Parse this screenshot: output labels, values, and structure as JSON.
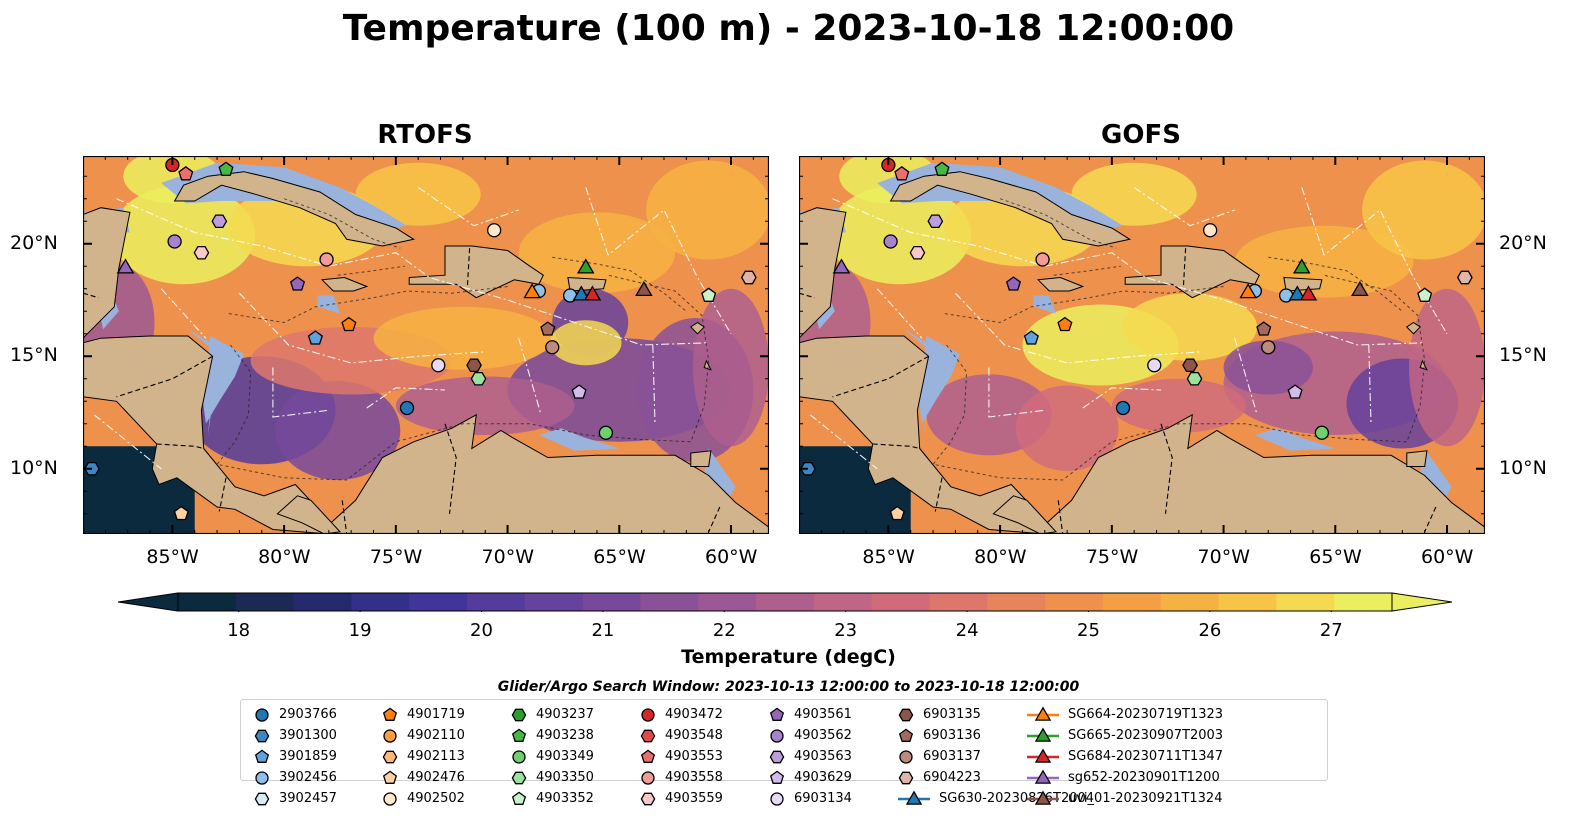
{
  "title": "Temperature (100 m) - 2023-10-18 12:00:00",
  "panels": [
    {
      "title": "RTOFS"
    },
    {
      "title": "GOFS"
    }
  ],
  "axes": {
    "x_ticks": [
      "85°W",
      "80°W",
      "75°W",
      "70°W",
      "65°W",
      "60°W"
    ],
    "y_ticks": [
      "20°N",
      "15°N",
      "10°N"
    ],
    "x_tick_values": [
      -85,
      -80,
      -75,
      -70,
      -65,
      -60
    ],
    "y_tick_values": [
      20,
      15,
      10
    ],
    "lon_range": [
      -89,
      -58.3
    ],
    "lat_range": [
      7.1,
      23.9
    ]
  },
  "colorbar": {
    "label": "Temperature (degC)",
    "ticks": [
      "18",
      "19",
      "20",
      "21",
      "22",
      "23",
      "24",
      "25",
      "26",
      "27"
    ],
    "range": [
      17.5,
      27.5
    ],
    "colors": [
      "#0c2a3e",
      "#1a2a55",
      "#252a6e",
      "#33308a",
      "#42359a",
      "#533c9c",
      "#65429c",
      "#77499b",
      "#8a5198",
      "#9c5894",
      "#ae5f8e",
      "#c06585",
      "#d06c7a",
      "#dd776c",
      "#e6845c",
      "#ee914d",
      "#f3a045",
      "#f6b143",
      "#f7c447",
      "#f4d951",
      "#ebee5e"
    ]
  },
  "search_window": "Glider/Argo Search Window: 2023-10-13 12:00:00 to 2023-10-18 12:00:00",
  "colors": {
    "land": "#d2b48c",
    "shelf": "#99b3dd",
    "deep_ocean": "#0c2a3e"
  },
  "legend": [
    {
      "label": "2903766",
      "marker": "circle",
      "color": "#1f77b4"
    },
    {
      "label": "3901300",
      "marker": "hexagon",
      "color": "#3d86c6"
    },
    {
      "label": "3901859",
      "marker": "pentagon",
      "color": "#5fa2dd"
    },
    {
      "label": "3902456",
      "marker": "circle",
      "color": "#8ec1ea"
    },
    {
      "label": "3902457",
      "marker": "hexagon",
      "color": "#d6eaf8"
    },
    {
      "label": "4901719",
      "marker": "pentagon",
      "color": "#ff7f0e"
    },
    {
      "label": "4902110",
      "marker": "circle",
      "color": "#ff9c40"
    },
    {
      "label": "4902113",
      "marker": "hexagon",
      "color": "#ffb877"
    },
    {
      "label": "4902476",
      "marker": "pentagon",
      "color": "#ffd0a0"
    },
    {
      "label": "4902502",
      "marker": "circle",
      "color": "#ffe7cc"
    },
    {
      "label": "4903237",
      "marker": "hexagon",
      "color": "#2ca02c"
    },
    {
      "label": "4903238",
      "marker": "pentagon",
      "color": "#45b945"
    },
    {
      "label": "4903349",
      "marker": "circle",
      "color": "#6fd06f"
    },
    {
      "label": "4903350",
      "marker": "hexagon",
      "color": "#9be29b"
    },
    {
      "label": "4903352",
      "marker": "pentagon",
      "color": "#c9f2c9"
    },
    {
      "label": "4903472",
      "marker": "circle",
      "color": "#d62728"
    },
    {
      "label": "4903548",
      "marker": "hexagon",
      "color": "#e24a4a"
    },
    {
      "label": "4903553",
      "marker": "pentagon",
      "color": "#ec6f6f"
    },
    {
      "label": "4903558",
      "marker": "circle",
      "color": "#f39a9a"
    },
    {
      "label": "4903559",
      "marker": "hexagon",
      "color": "#f9c8c8"
    },
    {
      "label": "4903561",
      "marker": "pentagon",
      "color": "#9467bd"
    },
    {
      "label": "4903562",
      "marker": "circle",
      "color": "#a881cf"
    },
    {
      "label": "4903563",
      "marker": "hexagon",
      "color": "#bc9edd"
    },
    {
      "label": "4903629",
      "marker": "pentagon",
      "color": "#d2bdea"
    },
    {
      "label": "6903134",
      "marker": "circle",
      "color": "#e8daf5"
    },
    {
      "label": "6903135",
      "marker": "hexagon",
      "color": "#8c564b"
    },
    {
      "label": "6903136",
      "marker": "pentagon",
      "color": "#a46a5e"
    },
    {
      "label": "6903137",
      "marker": "circle",
      "color": "#bd8a7e"
    },
    {
      "label": "6904223",
      "marker": "hexagon",
      "color": "#e0b4a8"
    },
    {
      "label": "SG630-20230826T2004",
      "marker": "triangle-line",
      "color": "#1f77b4"
    },
    {
      "label": "SG664-20230719T1323",
      "marker": "triangle-line",
      "color": "#ff7f0e"
    },
    {
      "label": "SG665-20230907T2003",
      "marker": "triangle-line",
      "color": "#2ca02c"
    },
    {
      "label": "SG684-20230711T1347",
      "marker": "triangle-line",
      "color": "#d62728"
    },
    {
      "label": "sg652-20230901T1200",
      "marker": "triangle-line",
      "color": "#9467bd"
    },
    {
      "label": "uvi_01-20230921T1324",
      "marker": "triangle-line",
      "color": "#8c564b"
    }
  ],
  "platforms": [
    {
      "id": "3901300",
      "lon": -88.6,
      "lat": 10.0
    },
    {
      "id": "4903472",
      "lon": -85.0,
      "lat": 23.5
    },
    {
      "id": "4903553",
      "lon": -84.4,
      "lat": 23.1
    },
    {
      "id": "4903238",
      "lon": -82.6,
      "lat": 23.3
    },
    {
      "id": "4903563",
      "lon": -82.9,
      "lat": 21.0
    },
    {
      "id": "4903562",
      "lon": -84.9,
      "lat": 20.1
    },
    {
      "id": "4903559",
      "lon": -83.7,
      "lat": 19.6
    },
    {
      "id": "sg652-20230901T1200",
      "lon": -87.1,
      "lat": 18.9
    },
    {
      "id": "4903561",
      "lon": -79.4,
      "lat": 18.2
    },
    {
      "id": "4903558",
      "lon": -78.1,
      "lat": 19.3
    },
    {
      "id": "4901719",
      "lon": -77.1,
      "lat": 16.4
    },
    {
      "id": "3901859",
      "lon": -78.6,
      "lat": 15.8
    },
    {
      "id": "4902502",
      "lon": -70.6,
      "lat": 20.6
    },
    {
      "id": "3902456",
      "lon": -68.6,
      "lat": 17.9
    },
    {
      "id": "3902456",
      "lon": -67.2,
      "lat": 17.7
    },
    {
      "id": "SG664-20230719T1323",
      "lon": -68.9,
      "lat": 17.8
    },
    {
      "id": "SG665-20230907T2003",
      "lon": -66.5,
      "lat": 18.9
    },
    {
      "id": "SG630-20230826T2004",
      "lon": -66.7,
      "lat": 17.7
    },
    {
      "id": "SG684-20230711T1347",
      "lon": -66.2,
      "lat": 17.7
    },
    {
      "id": "uvi_01-20230921T1324",
      "lon": -63.9,
      "lat": 17.9
    },
    {
      "id": "4903352",
      "lon": -61.0,
      "lat": 17.7
    },
    {
      "id": "6904223",
      "lon": -59.2,
      "lat": 18.5
    },
    {
      "id": "6903136",
      "lon": -68.2,
      "lat": 16.2
    },
    {
      "id": "6903137",
      "lon": -68.0,
      "lat": 15.4
    },
    {
      "id": "6903135",
      "lon": -71.5,
      "lat": 14.6
    },
    {
      "id": "4903350",
      "lon": -71.3,
      "lat": 14.0
    },
    {
      "id": "6903134",
      "lon": -73.1,
      "lat": 14.6
    },
    {
      "id": "4903629",
      "lon": -66.8,
      "lat": 13.4
    },
    {
      "id": "2903766",
      "lon": -74.5,
      "lat": 12.7
    },
    {
      "id": "4903349",
      "lon": -65.6,
      "lat": 11.6
    },
    {
      "id": "4902476",
      "lon": -84.6,
      "lat": 8.0
    }
  ]
}
